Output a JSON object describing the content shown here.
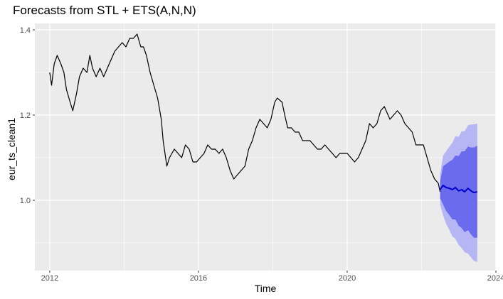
{
  "chart_data": {
    "type": "line",
    "title": "Forecasts from STL +  ETS(A,N,N)",
    "xlabel": "Time",
    "ylabel": "eur_ts_clean1",
    "xlim": [
      2011.6,
      2024.0
    ],
    "ylim": [
      0.835,
      1.415
    ],
    "x_ticks": [
      2012,
      2016,
      2020,
      2024
    ],
    "x_tick_labels": [
      "2012",
      "2016",
      "2020",
      "2024"
    ],
    "y_ticks": [
      1.0,
      1.2,
      1.4
    ],
    "y_tick_labels": [
      "1.0",
      "1.2",
      "1.4"
    ],
    "grid": true,
    "legend": "none",
    "colors": {
      "panel": "#ebebeb",
      "grid": "#ffffff",
      "series": "#000000",
      "forecast": "#0000cc",
      "band80": "#6b6bee",
      "band95": "#b6b6f5"
    },
    "series": [
      {
        "values": [
          [
            2012.0,
            1.3
          ],
          [
            2012.05,
            1.27
          ],
          [
            2012.12,
            1.32
          ],
          [
            2012.2,
            1.34
          ],
          [
            2012.3,
            1.32
          ],
          [
            2012.38,
            1.3
          ],
          [
            2012.45,
            1.26
          ],
          [
            2012.55,
            1.23
          ],
          [
            2012.62,
            1.21
          ],
          [
            2012.72,
            1.25
          ],
          [
            2012.8,
            1.29
          ],
          [
            2012.9,
            1.31
          ],
          [
            2013.0,
            1.3
          ],
          [
            2013.08,
            1.34
          ],
          [
            2013.15,
            1.31
          ],
          [
            2013.25,
            1.29
          ],
          [
            2013.35,
            1.31
          ],
          [
            2013.45,
            1.29
          ],
          [
            2013.55,
            1.31
          ],
          [
            2013.65,
            1.33
          ],
          [
            2013.75,
            1.35
          ],
          [
            2013.85,
            1.36
          ],
          [
            2013.95,
            1.37
          ],
          [
            2014.05,
            1.36
          ],
          [
            2014.15,
            1.38
          ],
          [
            2014.25,
            1.38
          ],
          [
            2014.35,
            1.39
          ],
          [
            2014.45,
            1.36
          ],
          [
            2014.52,
            1.36
          ],
          [
            2014.6,
            1.34
          ],
          [
            2014.7,
            1.3
          ],
          [
            2014.8,
            1.27
          ],
          [
            2014.9,
            1.24
          ],
          [
            2015.0,
            1.19
          ],
          [
            2015.05,
            1.14
          ],
          [
            2015.15,
            1.08
          ],
          [
            2015.22,
            1.1
          ],
          [
            2015.35,
            1.12
          ],
          [
            2015.45,
            1.11
          ],
          [
            2015.55,
            1.1
          ],
          [
            2015.65,
            1.13
          ],
          [
            2015.75,
            1.12
          ],
          [
            2015.85,
            1.09
          ],
          [
            2015.95,
            1.09
          ],
          [
            2016.05,
            1.1
          ],
          [
            2016.15,
            1.11
          ],
          [
            2016.25,
            1.13
          ],
          [
            2016.35,
            1.12
          ],
          [
            2016.45,
            1.12
          ],
          [
            2016.55,
            1.11
          ],
          [
            2016.65,
            1.12
          ],
          [
            2016.75,
            1.1
          ],
          [
            2016.85,
            1.07
          ],
          [
            2016.95,
            1.05
          ],
          [
            2017.05,
            1.06
          ],
          [
            2017.15,
            1.07
          ],
          [
            2017.25,
            1.08
          ],
          [
            2017.35,
            1.12
          ],
          [
            2017.45,
            1.14
          ],
          [
            2017.55,
            1.17
          ],
          [
            2017.65,
            1.19
          ],
          [
            2017.75,
            1.18
          ],
          [
            2017.85,
            1.17
          ],
          [
            2017.95,
            1.19
          ],
          [
            2018.05,
            1.23
          ],
          [
            2018.12,
            1.24
          ],
          [
            2018.25,
            1.23
          ],
          [
            2018.32,
            1.2
          ],
          [
            2018.4,
            1.17
          ],
          [
            2018.5,
            1.17
          ],
          [
            2018.6,
            1.16
          ],
          [
            2018.7,
            1.16
          ],
          [
            2018.8,
            1.14
          ],
          [
            2018.9,
            1.14
          ],
          [
            2019.0,
            1.14
          ],
          [
            2019.1,
            1.13
          ],
          [
            2019.2,
            1.12
          ],
          [
            2019.3,
            1.12
          ],
          [
            2019.4,
            1.13
          ],
          [
            2019.5,
            1.12
          ],
          [
            2019.6,
            1.11
          ],
          [
            2019.7,
            1.1
          ],
          [
            2019.8,
            1.11
          ],
          [
            2019.9,
            1.11
          ],
          [
            2020.0,
            1.11
          ],
          [
            2020.1,
            1.1
          ],
          [
            2020.2,
            1.09
          ],
          [
            2020.3,
            1.1
          ],
          [
            2020.4,
            1.12
          ],
          [
            2020.5,
            1.14
          ],
          [
            2020.6,
            1.18
          ],
          [
            2020.7,
            1.17
          ],
          [
            2020.8,
            1.18
          ],
          [
            2020.9,
            1.21
          ],
          [
            2021.0,
            1.22
          ],
          [
            2021.05,
            1.21
          ],
          [
            2021.15,
            1.19
          ],
          [
            2021.25,
            1.2
          ],
          [
            2021.35,
            1.21
          ],
          [
            2021.45,
            1.2
          ],
          [
            2021.55,
            1.18
          ],
          [
            2021.65,
            1.17
          ],
          [
            2021.75,
            1.16
          ],
          [
            2021.85,
            1.13
          ],
          [
            2021.95,
            1.13
          ],
          [
            2022.05,
            1.13
          ],
          [
            2022.15,
            1.1
          ],
          [
            2022.25,
            1.07
          ],
          [
            2022.35,
            1.05
          ],
          [
            2022.45,
            1.04
          ],
          [
            2022.5,
            1.02
          ]
        ]
      }
    ],
    "forecast": {
      "values": [
        [
          2022.5,
          1.025
        ],
        [
          2022.58,
          1.035
        ],
        [
          2022.66,
          1.03
        ],
        [
          2022.75,
          1.028
        ],
        [
          2022.83,
          1.025
        ],
        [
          2022.91,
          1.03
        ],
        [
          2023.0,
          1.022
        ],
        [
          2023.08,
          1.025
        ],
        [
          2023.16,
          1.02
        ],
        [
          2023.25,
          1.028
        ],
        [
          2023.33,
          1.022
        ],
        [
          2023.41,
          1.018
        ],
        [
          2023.5,
          1.02
        ]
      ],
      "lo80": [
        [
          2022.5,
          1.005
        ],
        [
          2022.58,
          0.99
        ],
        [
          2022.66,
          0.975
        ],
        [
          2022.75,
          0.965
        ],
        [
          2022.83,
          0.955
        ],
        [
          2022.91,
          0.955
        ],
        [
          2023.0,
          0.94
        ],
        [
          2023.08,
          0.935
        ],
        [
          2023.16,
          0.925
        ],
        [
          2023.25,
          0.93
        ],
        [
          2023.33,
          0.92
        ],
        [
          2023.41,
          0.912
        ],
        [
          2023.5,
          0.912
        ]
      ],
      "hi80": [
        [
          2022.5,
          1.045
        ],
        [
          2022.58,
          1.08
        ],
        [
          2022.66,
          1.085
        ],
        [
          2022.75,
          1.091
        ],
        [
          2022.83,
          1.095
        ],
        [
          2022.91,
          1.105
        ],
        [
          2023.0,
          1.104
        ],
        [
          2023.08,
          1.115
        ],
        [
          2023.16,
          1.115
        ],
        [
          2023.25,
          1.126
        ],
        [
          2023.33,
          1.124
        ],
        [
          2023.41,
          1.124
        ],
        [
          2023.5,
          1.128
        ]
      ],
      "lo95": [
        [
          2022.5,
          0.99
        ],
        [
          2022.58,
          0.965
        ],
        [
          2022.66,
          0.945
        ],
        [
          2022.75,
          0.93
        ],
        [
          2022.83,
          0.915
        ],
        [
          2022.91,
          0.91
        ],
        [
          2023.0,
          0.895
        ],
        [
          2023.08,
          0.888
        ],
        [
          2023.16,
          0.878
        ],
        [
          2023.25,
          0.875
        ],
        [
          2023.33,
          0.866
        ],
        [
          2023.41,
          0.858
        ],
        [
          2023.5,
          0.855
        ]
      ],
      "hi95": [
        [
          2022.5,
          1.06
        ],
        [
          2022.58,
          1.105
        ],
        [
          2022.66,
          1.115
        ],
        [
          2022.75,
          1.126
        ],
        [
          2022.83,
          1.135
        ],
        [
          2022.91,
          1.15
        ],
        [
          2023.0,
          1.149
        ],
        [
          2023.08,
          1.162
        ],
        [
          2023.16,
          1.162
        ],
        [
          2023.25,
          1.176
        ],
        [
          2023.33,
          1.178
        ],
        [
          2023.41,
          1.178
        ],
        [
          2023.5,
          1.18
        ]
      ]
    }
  }
}
